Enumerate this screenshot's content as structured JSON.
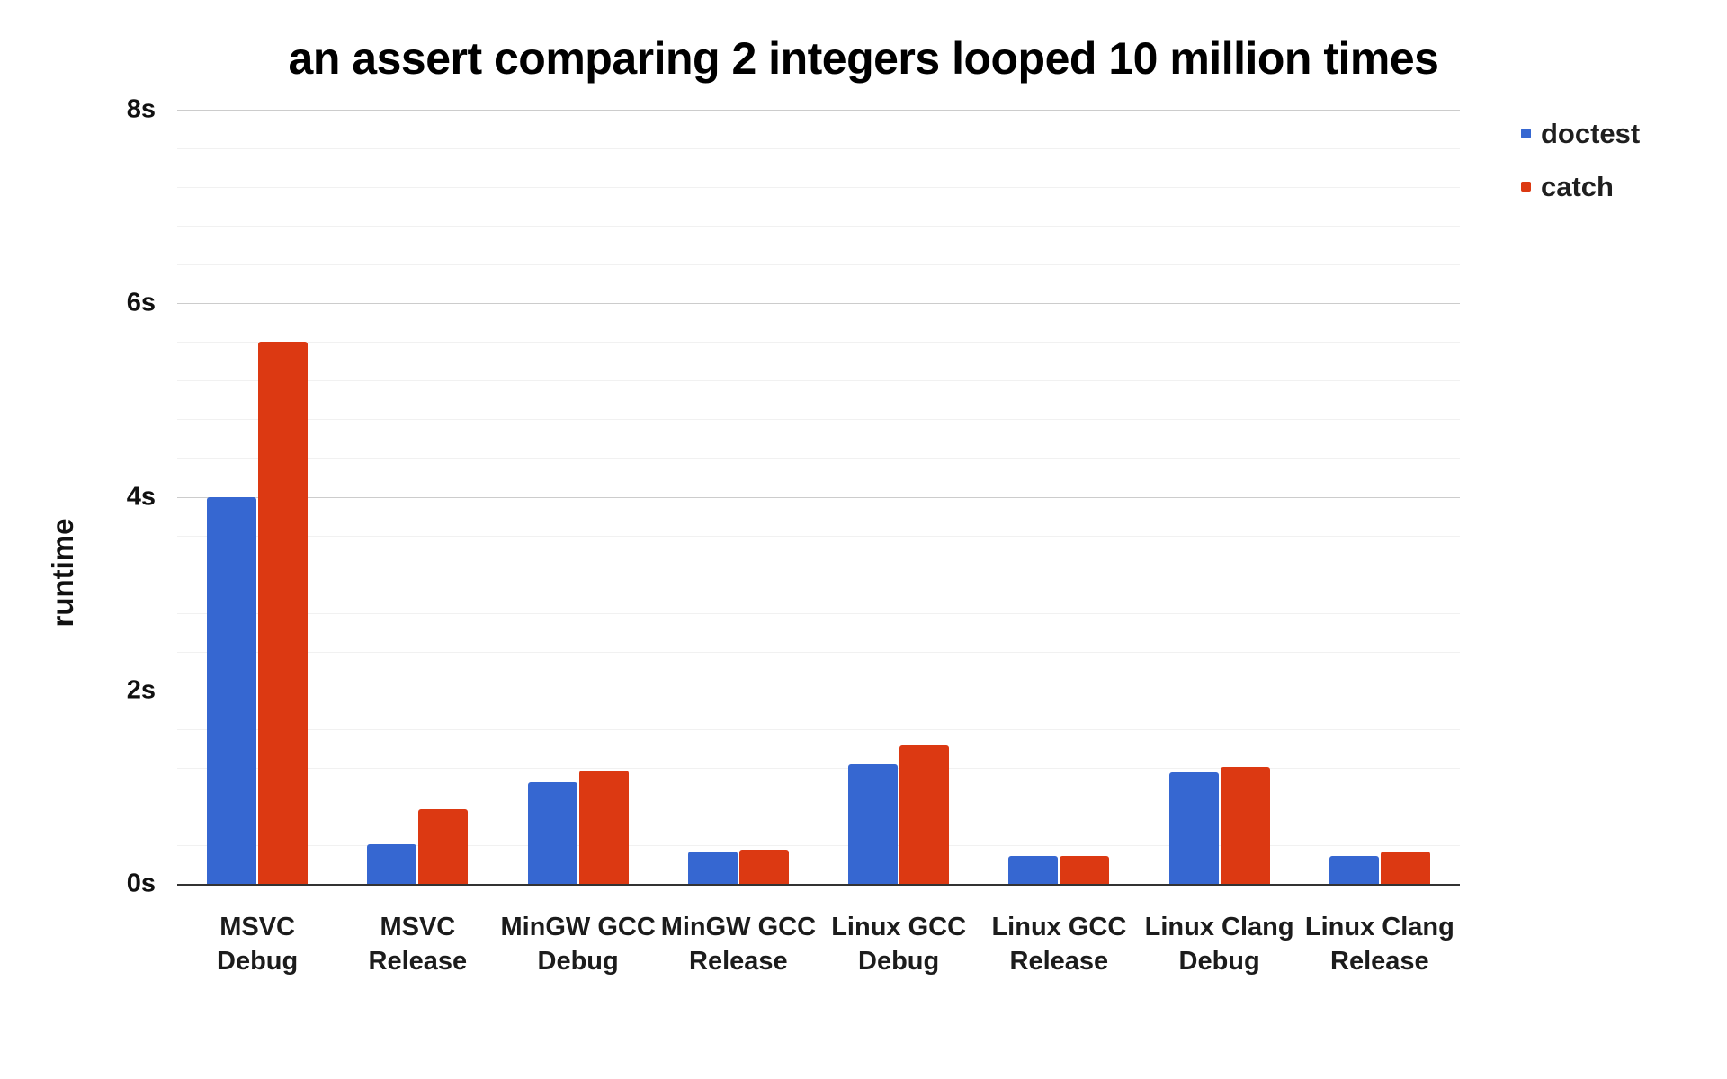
{
  "page": {
    "background": "#ffffff"
  },
  "chart_data": {
    "type": "bar",
    "title": "an assert comparing 2 integers looped 10 million times",
    "ylabel": "runtime",
    "xlabel": "",
    "categories": [
      "MSVC\nDebug",
      "MSVC\nRelease",
      "MinGW GCC\nDebug",
      "MinGW GCC\nRelease",
      "Linux GCC\nDebug",
      "Linux GCC\nRelease",
      "Linux Clang\nDebug",
      "Linux Clang\nRelease"
    ],
    "series": [
      {
        "name": "doctest",
        "color": "#3667d1",
        "values": [
          4.0,
          0.41,
          1.05,
          0.33,
          1.24,
          0.29,
          1.15,
          0.29
        ]
      },
      {
        "name": "catch",
        "color": "#dc3912",
        "values": [
          5.6,
          0.77,
          1.17,
          0.35,
          1.43,
          0.29,
          1.21,
          0.33
        ]
      }
    ],
    "y_axis": {
      "min": 0,
      "max": 8,
      "major_step": 2,
      "minor_step": 0.4,
      "ticks": [
        {
          "value": 0,
          "label": "0s"
        },
        {
          "value": 2,
          "label": "2s"
        },
        {
          "value": 4,
          "label": "4s"
        },
        {
          "value": 6,
          "label": "6s"
        },
        {
          "value": 8,
          "label": "8s"
        }
      ]
    },
    "legend": {
      "position": "top-right",
      "entries": [
        {
          "label": "doctest",
          "color": "#3667d1"
        },
        {
          "label": "catch",
          "color": "#dc3912"
        }
      ]
    },
    "grid": {
      "major_color": "#cccccc",
      "minor_color": "#f1f1f1",
      "baseline_color": "#333333"
    }
  }
}
